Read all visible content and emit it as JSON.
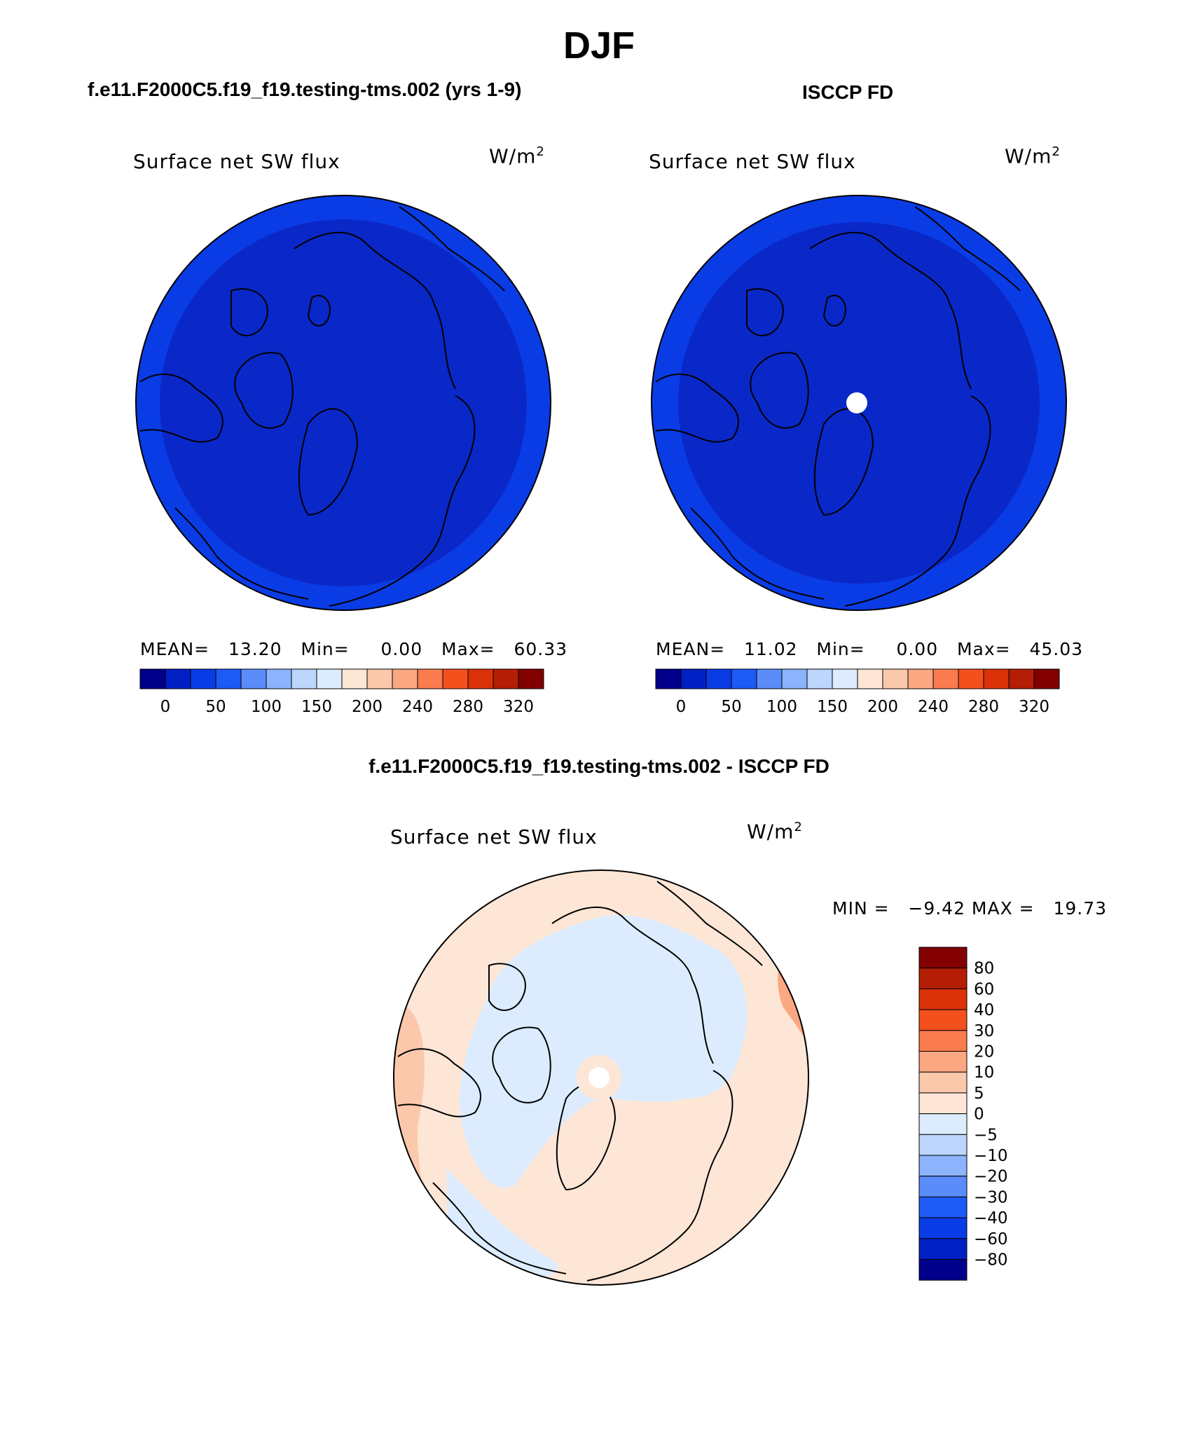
{
  "page": {
    "season": "DJF"
  },
  "panels": {
    "model": {
      "case_title": "f.e11.F2000C5.f19_f19.testing-tms.002 (yrs 1-9)",
      "variable": "Surface net SW flux",
      "units_base": "W/m",
      "units_exp": "2",
      "stats": {
        "mean_label": "MEAN=",
        "mean": "13.20",
        "min_label": "Min=",
        "min": "0.00",
        "max_label": "Max=",
        "max": "60.33"
      }
    },
    "obs": {
      "case_title": "ISCCP FD",
      "variable": "Surface net SW flux",
      "units_base": "W/m",
      "units_exp": "2",
      "stats": {
        "mean_label": "MEAN=",
        "mean": "11.02",
        "min_label": "Min=",
        "min": "0.00",
        "max_label": "Max=",
        "max": "45.03"
      }
    },
    "diff": {
      "case_title": "f.e11.F2000C5.f19_f19.testing-tms.002 - ISCCP FD",
      "variable": "Surface net SW flux",
      "units_base": "W/m",
      "units_exp": "2",
      "minmax_text": "MIN =   −9.42 MAX =   19.73"
    }
  },
  "colorbars": {
    "absolute": {
      "colors": [
        "#00008b",
        "#0020c4",
        "#0a3ce6",
        "#1e5af5",
        "#5a8cfa",
        "#8cb4fc",
        "#bcd6fd",
        "#dcecfe",
        "#fde6d6",
        "#fcc8ac",
        "#fba882",
        "#fa7b4e",
        "#f4501e",
        "#dc320a",
        "#b41e05",
        "#820000"
      ],
      "tick_labels": [
        "0",
        "50",
        "100",
        "150",
        "200",
        "240",
        "280",
        "320"
      ]
    },
    "difference": {
      "colors": [
        "#820000",
        "#b41e05",
        "#dc320a",
        "#f4501e",
        "#fa7b4e",
        "#fba882",
        "#fcc8ac",
        "#fde6d6",
        "#dcecfe",
        "#bcd6fd",
        "#8cb4fc",
        "#5a8cfa",
        "#1e5af5",
        "#0a3ce6",
        "#0020c4",
        "#00008b"
      ],
      "tick_labels": [
        "80",
        "60",
        "40",
        "30",
        "20",
        "10",
        "5",
        "0",
        "−5",
        "−10",
        "−20",
        "−30",
        "−40",
        "−60",
        "−80"
      ]
    }
  },
  "colors": {
    "map_ocean_dark": "#0a28c8",
    "map_ocean_light": "#0a3ce6",
    "diff_neg_light": "#dcecfe",
    "diff_pos_light": "#fde6d6",
    "diff_pos_mid": "#fcc8ac",
    "diff_pos_strong": "#fba882"
  }
}
